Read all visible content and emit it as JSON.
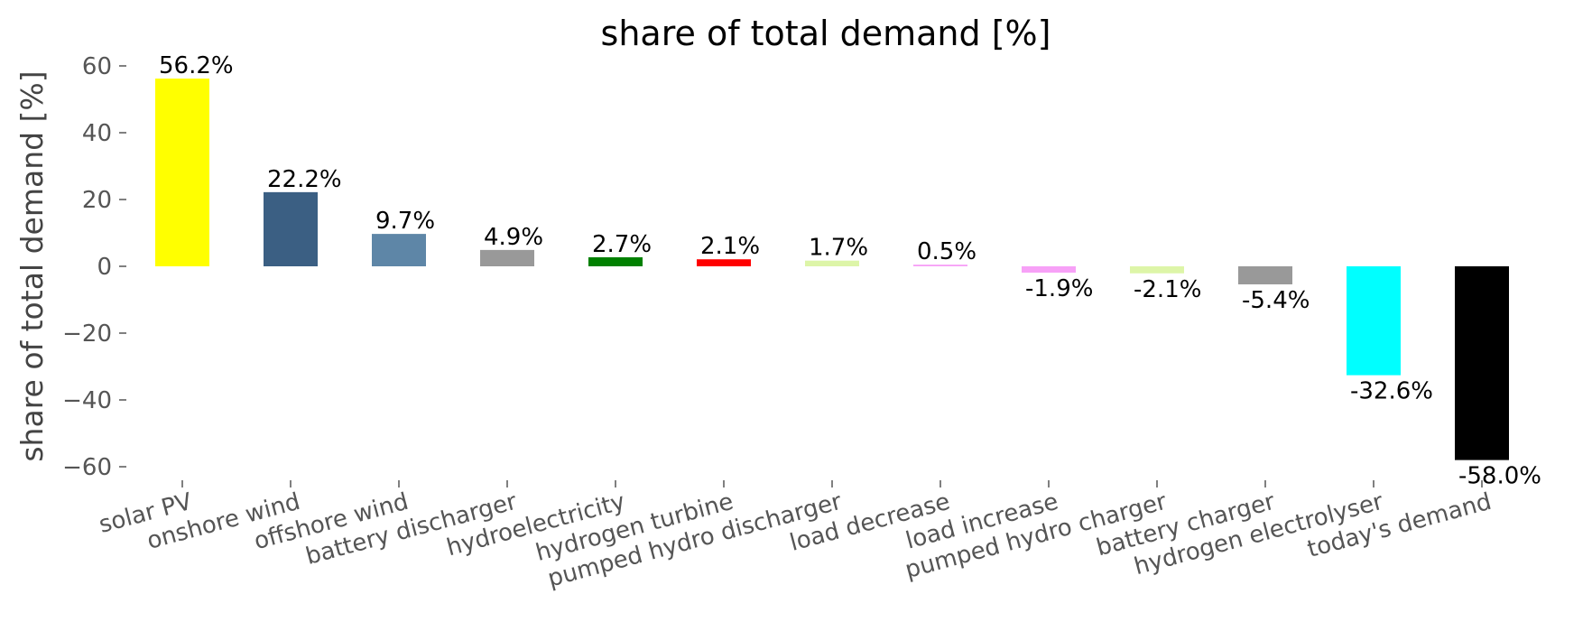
{
  "chart_data": {
    "type": "bar",
    "title": "share of total demand [%]",
    "xlabel": "",
    "ylabel": "share of total demand [%]",
    "ylim": [
      -63,
      63
    ],
    "yticks": [
      60,
      40,
      20,
      0,
      -20,
      -40,
      -60
    ],
    "ytick_labels": [
      "60",
      "40",
      "20",
      "0",
      "−20",
      "−40",
      "−60"
    ],
    "grid": false,
    "categories": [
      "solar PV",
      "onshore wind",
      "offshore wind",
      "battery discharger",
      "hydroelectricity",
      "hydrogen turbine",
      "pumped hydro discharger",
      "load decrease",
      "load increase",
      "pumped hydro charger",
      "battery charger",
      "hydrogen electrolyser",
      "today's demand"
    ],
    "values": [
      56.2,
      22.2,
      9.7,
      4.9,
      2.7,
      2.1,
      1.7,
      0.5,
      -1.9,
      -2.1,
      -5.4,
      -32.6,
      -58.0
    ],
    "data_labels": [
      "56.2%",
      "22.2%",
      "9.7%",
      "4.9%",
      "2.7%",
      "2.1%",
      "1.7%",
      "0.5%",
      "-1.9%",
      "-2.1%",
      "-5.4%",
      "-32.6%",
      "-58.0%"
    ],
    "colors": [
      "#FFFF00",
      "#3B5F83",
      "#5E86A7",
      "#999999",
      "#008000",
      "#FF0000",
      "#DDF5A8",
      "#F7A1F7",
      "#F7A1F7",
      "#DDF5A8",
      "#999999",
      "#00FFFF",
      "#000000"
    ]
  }
}
